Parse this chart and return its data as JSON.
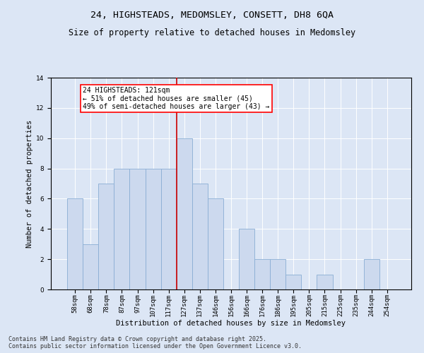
{
  "title_line1": "24, HIGHSTEADS, MEDOMSLEY, CONSETT, DH8 6QA",
  "title_line2": "Size of property relative to detached houses in Medomsley",
  "xlabel": "Distribution of detached houses by size in Medomsley",
  "ylabel": "Number of detached properties",
  "bar_labels": [
    "58sqm",
    "68sqm",
    "78sqm",
    "87sqm",
    "97sqm",
    "107sqm",
    "117sqm",
    "127sqm",
    "137sqm",
    "146sqm",
    "156sqm",
    "166sqm",
    "176sqm",
    "186sqm",
    "195sqm",
    "205sqm",
    "215sqm",
    "225sqm",
    "235sqm",
    "244sqm",
    "254sqm"
  ],
  "bar_values": [
    6,
    3,
    7,
    8,
    8,
    8,
    8,
    10,
    7,
    6,
    0,
    4,
    2,
    2,
    1,
    0,
    1,
    0,
    0,
    2,
    0
  ],
  "bar_color": "#ccd9ee",
  "bar_edgecolor": "#8aadd4",
  "annotation_text": "24 HIGHSTEADS: 121sqm\n← 51% of detached houses are smaller (45)\n49% of semi-detached houses are larger (43) →",
  "vline_x_index": 6.5,
  "vline_color": "#cc0000",
  "ylim": [
    0,
    14
  ],
  "yticks": [
    0,
    2,
    4,
    6,
    8,
    10,
    12,
    14
  ],
  "background_color": "#dce6f5",
  "plot_background": "#dce6f5",
  "footer_line1": "Contains HM Land Registry data © Crown copyright and database right 2025.",
  "footer_line2": "Contains public sector information licensed under the Open Government Licence v3.0.",
  "title_fontsize": 9.5,
  "subtitle_fontsize": 8.5,
  "axis_label_fontsize": 7.5,
  "tick_fontsize": 6.5,
  "annotation_fontsize": 7,
  "footer_fontsize": 6
}
